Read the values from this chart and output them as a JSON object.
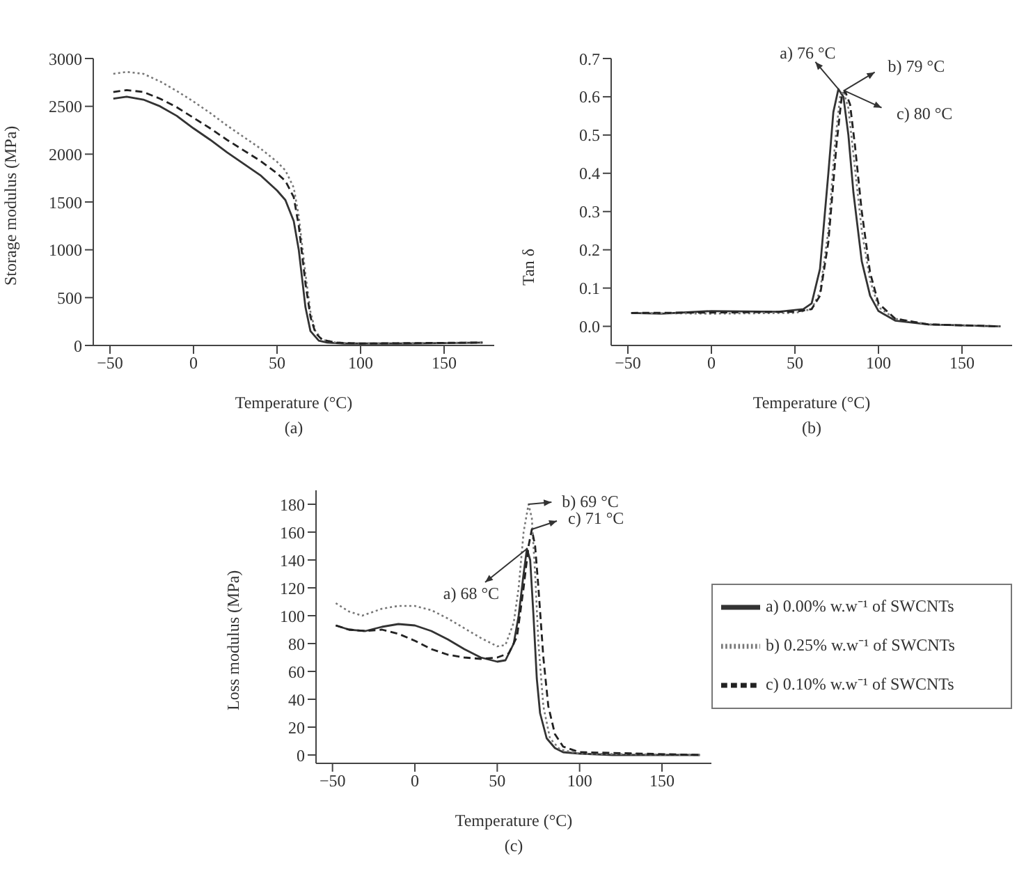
{
  "chart_data": [
    {
      "type": "line",
      "xlabel": "Temperature (°C)",
      "ylabel": "Storage modulus (MPa)",
      "annotations": [
        "(a)"
      ],
      "xlim": [
        -60,
        180
      ],
      "xticks": [
        -50,
        0,
        50,
        100,
        150
      ],
      "ylim": [
        0,
        3000
      ],
      "yticks": [
        0,
        500,
        1000,
        1500,
        2000,
        2500,
        3000
      ],
      "legend": false,
      "marker": "none",
      "series": [
        {
          "color": "#333333",
          "line_style": "solid",
          "x": [
            -48,
            -40,
            -30,
            -20,
            -10,
            0,
            10,
            20,
            30,
            40,
            50,
            55,
            60,
            63,
            65,
            67,
            70,
            75,
            80,
            90,
            100,
            130,
            173
          ],
          "values": [
            2580,
            2600,
            2570,
            2500,
            2400,
            2270,
            2150,
            2020,
            1900,
            1780,
            1620,
            1520,
            1300,
            1000,
            700,
            400,
            150,
            50,
            30,
            20,
            20,
            20,
            30
          ]
        },
        {
          "color": "#777777",
          "line_style": "dotted",
          "x": [
            -48,
            -40,
            -30,
            -20,
            -10,
            0,
            10,
            20,
            30,
            40,
            50,
            55,
            60,
            63,
            65,
            67,
            70,
            73,
            77,
            85,
            100,
            173
          ],
          "values": [
            2840,
            2860,
            2840,
            2760,
            2660,
            2550,
            2430,
            2300,
            2180,
            2060,
            1920,
            1830,
            1650,
            1350,
            1050,
            750,
            350,
            150,
            60,
            30,
            20,
            30
          ]
        },
        {
          "color": "#222222",
          "line_style": "dashed",
          "x": [
            -48,
            -40,
            -30,
            -20,
            -10,
            0,
            10,
            20,
            30,
            40,
            50,
            55,
            60,
            63,
            65,
            67,
            70,
            73,
            77,
            85,
            100,
            173
          ],
          "values": [
            2650,
            2670,
            2650,
            2580,
            2490,
            2380,
            2270,
            2150,
            2040,
            1930,
            1800,
            1720,
            1550,
            1250,
            950,
            650,
            300,
            130,
            60,
            30,
            20,
            30
          ]
        }
      ]
    },
    {
      "type": "line",
      "xlabel": "Temperature (°C)",
      "ylabel": "Tan δ",
      "annotations": [
        {
          "text": "a) 76 °C",
          "x": 76,
          "y": 0.62
        },
        {
          "text": "b) 79 °C",
          "x": 79,
          "y": 0.615
        },
        {
          "text": "c) 80 °C",
          "x": 80,
          "y": 0.615
        },
        "(b)"
      ],
      "xlim": [
        -60,
        180
      ],
      "xticks": [
        -50,
        0,
        50,
        100,
        150
      ],
      "ylim": [
        -0.05,
        0.7
      ],
      "yticks": [
        {
          "value": 0,
          "label": "0.0"
        },
        0.1,
        0.2,
        0.3,
        0.4,
        0.5,
        0.6,
        0.7
      ],
      "legend": false,
      "marker": "none",
      "series": [
        {
          "color": "#333333",
          "line_style": "solid",
          "x": [
            -48,
            -30,
            0,
            40,
            55,
            60,
            65,
            70,
            73,
            76,
            79,
            82,
            85,
            90,
            95,
            100,
            110,
            130,
            173
          ],
          "values": [
            0.035,
            0.033,
            0.04,
            0.038,
            0.045,
            0.06,
            0.15,
            0.4,
            0.56,
            0.62,
            0.6,
            0.5,
            0.35,
            0.17,
            0.08,
            0.04,
            0.015,
            0.005,
            0
          ]
        },
        {
          "color": "#777777",
          "line_style": "dotted",
          "x": [
            -48,
            0,
            50,
            60,
            65,
            70,
            74,
            77,
            79,
            82,
            85,
            90,
            95,
            100,
            110,
            130,
            173
          ],
          "values": [
            0.035,
            0.033,
            0.035,
            0.045,
            0.09,
            0.25,
            0.48,
            0.6,
            0.615,
            0.57,
            0.45,
            0.25,
            0.12,
            0.05,
            0.02,
            0.005,
            0
          ]
        },
        {
          "color": "#222222",
          "line_style": "dashed",
          "x": [
            -48,
            0,
            50,
            60,
            65,
            70,
            75,
            78,
            80,
            83,
            86,
            90,
            95,
            100,
            110,
            130,
            173
          ],
          "values": [
            0.035,
            0.036,
            0.038,
            0.045,
            0.08,
            0.22,
            0.48,
            0.6,
            0.615,
            0.58,
            0.47,
            0.3,
            0.14,
            0.06,
            0.02,
            0.005,
            0
          ]
        }
      ]
    },
    {
      "type": "line",
      "xlabel": "Temperature (°C)",
      "ylabel": "Loss modulus (MPa)",
      "annotations": [
        {
          "text": "a) 68 °C",
          "x": 68,
          "y": 148
        },
        {
          "text": "b) 69 °C",
          "x": 69,
          "y": 180
        },
        {
          "text": "c) 71 °C",
          "x": 71,
          "y": 162
        },
        "(c)"
      ],
      "xlim": [
        -60,
        180
      ],
      "xticks": [
        -50,
        0,
        50,
        100,
        150
      ],
      "ylim": [
        -6,
        190
      ],
      "yticks": [
        0,
        20,
        40,
        60,
        80,
        100,
        120,
        140,
        160,
        180
      ],
      "legend": "right",
      "marker": "none",
      "series": [
        {
          "name": "a) 0.00% w.w⁻¹ of SWCNTs",
          "color": "#333333",
          "line_style": "solid",
          "x": [
            -48,
            -40,
            -30,
            -20,
            -10,
            0,
            10,
            20,
            30,
            40,
            50,
            55,
            60,
            63,
            66,
            68,
            70,
            72,
            74,
            76,
            80,
            85,
            90,
            100,
            120,
            173
          ],
          "values": [
            93,
            90,
            89,
            92,
            94,
            93,
            89,
            83,
            76,
            70,
            67,
            68,
            80,
            100,
            130,
            148,
            140,
            100,
            55,
            30,
            12,
            5,
            2,
            1,
            0,
            0
          ]
        },
        {
          "name": "b) 0.25% w.w⁻¹ of SWCNTs",
          "color": "#777777",
          "line_style": "dotted",
          "x": [
            -48,
            -40,
            -32,
            -20,
            -10,
            0,
            10,
            20,
            30,
            40,
            50,
            55,
            60,
            63,
            66,
            69,
            71,
            73,
            75,
            78,
            82,
            88,
            100,
            173
          ],
          "values": [
            109,
            103,
            100,
            105,
            107,
            107,
            104,
            98,
            91,
            84,
            78,
            79,
            95,
            120,
            160,
            180,
            170,
            130,
            80,
            35,
            12,
            4,
            1,
            0
          ]
        },
        {
          "name": "c) 0.10% w.w⁻¹ of SWCNTs",
          "color": "#222222",
          "line_style": "dashed",
          "x": [
            -48,
            -40,
            -30,
            -20,
            -10,
            0,
            10,
            20,
            30,
            40,
            50,
            57,
            62,
            66,
            69,
            71,
            73,
            75,
            78,
            81,
            85,
            90,
            100,
            173
          ],
          "values": [
            93,
            90,
            89,
            90,
            87,
            82,
            76,
            72,
            70,
            69,
            70,
            73,
            85,
            120,
            150,
            162,
            150,
            120,
            70,
            35,
            15,
            6,
            2,
            0
          ]
        }
      ]
    }
  ]
}
